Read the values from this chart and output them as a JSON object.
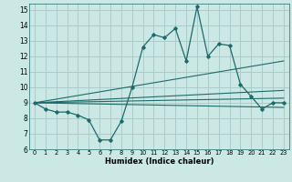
{
  "title": "",
  "xlabel": "Humidex (Indice chaleur)",
  "bg_color": "#cce8e4",
  "grid_color": "#aaccca",
  "line_color": "#1a6b6b",
  "xlim": [
    -0.5,
    23.5
  ],
  "ylim": [
    6,
    15.4
  ],
  "xticks": [
    0,
    1,
    2,
    3,
    4,
    5,
    6,
    7,
    8,
    9,
    10,
    11,
    12,
    13,
    14,
    15,
    16,
    17,
    18,
    19,
    20,
    21,
    22,
    23
  ],
  "yticks": [
    6,
    7,
    8,
    9,
    10,
    11,
    12,
    13,
    14,
    15
  ],
  "main_x": [
    0,
    1,
    2,
    3,
    4,
    5,
    6,
    7,
    8,
    9,
    10,
    11,
    12,
    13,
    14,
    15,
    16,
    17,
    18,
    19,
    20,
    21,
    22,
    23
  ],
  "main_y": [
    9.0,
    8.6,
    8.4,
    8.4,
    8.2,
    7.9,
    6.6,
    6.6,
    7.8,
    10.0,
    12.6,
    13.4,
    13.2,
    13.8,
    11.7,
    15.2,
    12.0,
    12.8,
    12.7,
    10.2,
    9.4,
    8.6,
    9.0,
    9.0
  ],
  "line1_x": [
    0,
    23
  ],
  "line1_y": [
    9.0,
    9.3
  ],
  "line2_x": [
    0,
    23
  ],
  "line2_y": [
    9.0,
    11.7
  ],
  "line3_x": [
    0,
    23
  ],
  "line3_y": [
    9.0,
    8.7
  ],
  "line4_x": [
    0,
    23
  ],
  "line4_y": [
    9.0,
    9.8
  ]
}
